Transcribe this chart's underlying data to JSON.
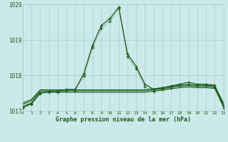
{
  "title": "Graphe pression niveau de la mer (hPa)",
  "background_color": "#cce9e9",
  "grid_color": "#aacccc",
  "line_color": "#1a5c1a",
  "x_values": [
    0,
    1,
    2,
    3,
    4,
    5,
    6,
    7,
    8,
    9,
    10,
    11,
    12,
    13,
    14,
    15,
    16,
    17,
    18,
    19,
    20,
    21,
    22,
    23
  ],
  "series_main": [
    1017.1,
    1017.2,
    1017.5,
    1017.55,
    1017.55,
    1017.6,
    1017.6,
    1018.05,
    1018.85,
    1019.4,
    1019.6,
    1019.92,
    1018.6,
    1018.25,
    1017.75,
    1017.6,
    1017.65,
    1017.7,
    1017.75,
    1017.8,
    1017.75,
    1017.75,
    1017.72,
    1017.15
  ],
  "series_dot": [
    1017.08,
    1017.18,
    1017.48,
    1017.52,
    1017.52,
    1017.57,
    1017.57,
    1017.98,
    1018.78,
    1019.32,
    1019.52,
    1019.88,
    1018.52,
    1018.18,
    1017.68,
    1017.55,
    1017.6,
    1017.65,
    1017.7,
    1017.75,
    1017.7,
    1017.7,
    1017.67,
    1017.08
  ],
  "flat_a": [
    1017.12,
    1017.22,
    1017.52,
    1017.52,
    1017.52,
    1017.52,
    1017.52,
    1017.52,
    1017.52,
    1017.52,
    1017.52,
    1017.52,
    1017.52,
    1017.52,
    1017.52,
    1017.55,
    1017.58,
    1017.62,
    1017.65,
    1017.67,
    1017.65,
    1017.65,
    1017.63,
    1017.12
  ],
  "flat_b": [
    1017.18,
    1017.28,
    1017.56,
    1017.56,
    1017.56,
    1017.56,
    1017.56,
    1017.56,
    1017.56,
    1017.56,
    1017.56,
    1017.56,
    1017.56,
    1017.56,
    1017.56,
    1017.59,
    1017.62,
    1017.66,
    1017.69,
    1017.71,
    1017.69,
    1017.69,
    1017.67,
    1017.18
  ],
  "flat_c": [
    1017.22,
    1017.32,
    1017.59,
    1017.59,
    1017.59,
    1017.59,
    1017.59,
    1017.59,
    1017.59,
    1017.59,
    1017.59,
    1017.59,
    1017.59,
    1017.59,
    1017.59,
    1017.62,
    1017.65,
    1017.69,
    1017.72,
    1017.74,
    1017.72,
    1017.72,
    1017.7,
    1017.22
  ],
  "ylim": [
    1017.0,
    1020.0
  ],
  "yticks": [
    1017,
    1018,
    1019,
    1020
  ],
  "xlim": [
    0,
    23
  ],
  "figsize": [
    3.2,
    2.0
  ],
  "dpi": 100
}
